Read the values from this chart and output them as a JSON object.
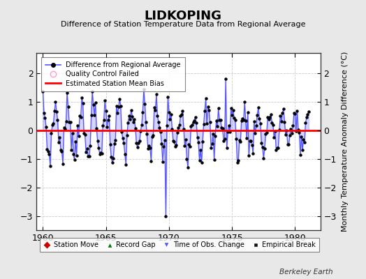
{
  "title": "LIDKOPING",
  "subtitle": "Difference of Station Temperature Data from Regional Average",
  "ylabel": "Monthly Temperature Anomaly Difference (°C)",
  "xlabel_bottom": "Berkeley Earth",
  "xlim": [
    1959.5,
    1982.0
  ],
  "ylim": [
    -3.5,
    2.7
  ],
  "yticks": [
    -3,
    -2,
    -1,
    0,
    1,
    2
  ],
  "xticks": [
    1960,
    1965,
    1970,
    1975,
    1980
  ],
  "bias_value": -0.02,
  "line_color": "#5555ff",
  "line_fill_color": "#aaaaff",
  "marker_color": "#000000",
  "bias_color": "#ff0000",
  "background_color": "#e8e8e8",
  "plot_bg_color": "#ffffff",
  "grid_color": "#cccccc"
}
